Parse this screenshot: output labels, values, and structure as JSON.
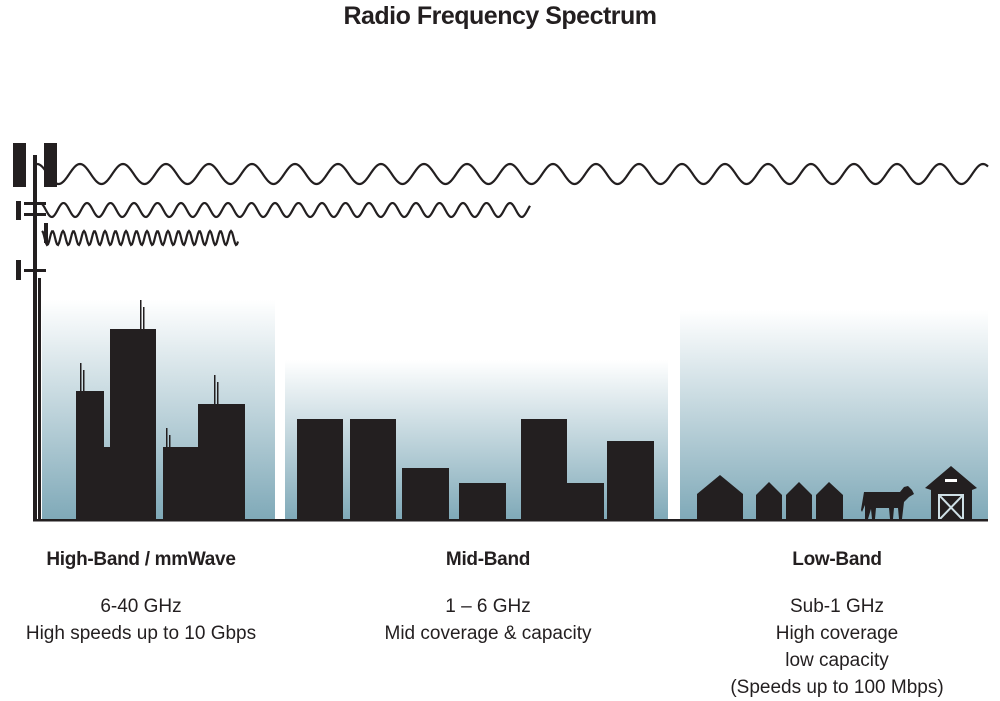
{
  "title": "Radio Frequency Spectrum",
  "colors": {
    "silhouette": "#231f20",
    "sky_top": "#ffffff",
    "sky_bottom": "#7fa9b8"
  },
  "bands": [
    {
      "name": "High-Band / mmWave",
      "lines": [
        "6-40 GHz",
        "High speeds up to 10 Gbps"
      ]
    },
    {
      "name": "Mid-Band",
      "lines": [
        "1 – 6 GHz",
        "Mid coverage & capacity"
      ]
    },
    {
      "name": "Low-Band",
      "lines": [
        "Sub-1 GHz",
        "High coverage",
        "low capacity",
        "(Speeds up to 100 Mbps)"
      ]
    }
  ],
  "icons": [
    "cell-tower-icon",
    "city-skyline",
    "suburb-skyline",
    "houses",
    "cow-icon",
    "barn-icon"
  ]
}
